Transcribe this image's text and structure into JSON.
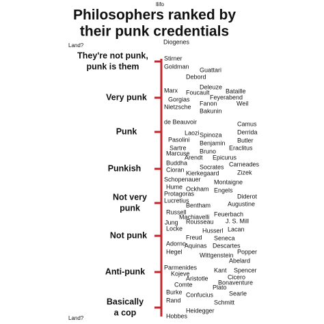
{
  "header": {
    "source": "llifo",
    "title_lines": [
      "Philosophers ranked by",
      "their punk credentials"
    ]
  },
  "axis": {
    "top_label": "Land?",
    "bottom_label": "Land?"
  },
  "categories": [
    {
      "lines": [
        "They're not punk,",
        "punk is them"
      ]
    },
    {
      "lines": [
        "Very punk"
      ]
    },
    {
      "lines": [
        "Punk"
      ]
    },
    {
      "lines": [
        "Punkish"
      ]
    },
    {
      "lines": [
        "Not very",
        "punk"
      ]
    },
    {
      "lines": [
        "Not punk"
      ]
    },
    {
      "lines": [
        "Anti-punk"
      ]
    },
    {
      "lines": [
        "Basically",
        "a cop"
      ]
    }
  ],
  "names": [
    "Diogenes",
    "Stirner",
    "Goldman",
    "Guattari",
    "Debord",
    "Deleuze",
    "Marx",
    "Foucault",
    "Bataille",
    "Feyerabend",
    "Gorgias",
    "Weil",
    "Fanon",
    "Nietzsche",
    "Bakunin",
    "de Beauvoir",
    "Camus",
    "Laozi",
    "Spinoza",
    "Derrida",
    "Pasolini",
    "Benjamin",
    "Butler",
    "Sartre",
    "Eraclitus",
    "Marcuse",
    "Bruno",
    "Arendt",
    "Epicurus",
    "Buddha",
    "Carneades",
    "Socrates",
    "Cioran",
    "Kierkegaard",
    "Zizek",
    "Schopenauer",
    "Montaigne",
    "Hume",
    "Ockham",
    "Engels",
    "Protagoras",
    "Diderot",
    "Lucretius",
    "Bentham",
    "Augustine",
    "Russell",
    "Feuerbach",
    "Machiavelli",
    "Jung",
    "Rousseau",
    "J. S. Mill",
    "Locke",
    "Lacan",
    "Husserl",
    "Freud",
    "Seneca",
    "Adorno",
    "Aquinas",
    "Descartes",
    "Hegel",
    "Popper",
    "Wittgenstein",
    "Abelard",
    "Parmenides",
    "Kojeve",
    "Kant",
    "Spencer",
    "Aristotle",
    "Cicero",
    "Bonaventure",
    "Comte",
    "Plato",
    "Burke",
    "Searle",
    "Confucius",
    "Rand",
    "Schmitt",
    "Heidegger",
    "Hobbes"
  ]
}
